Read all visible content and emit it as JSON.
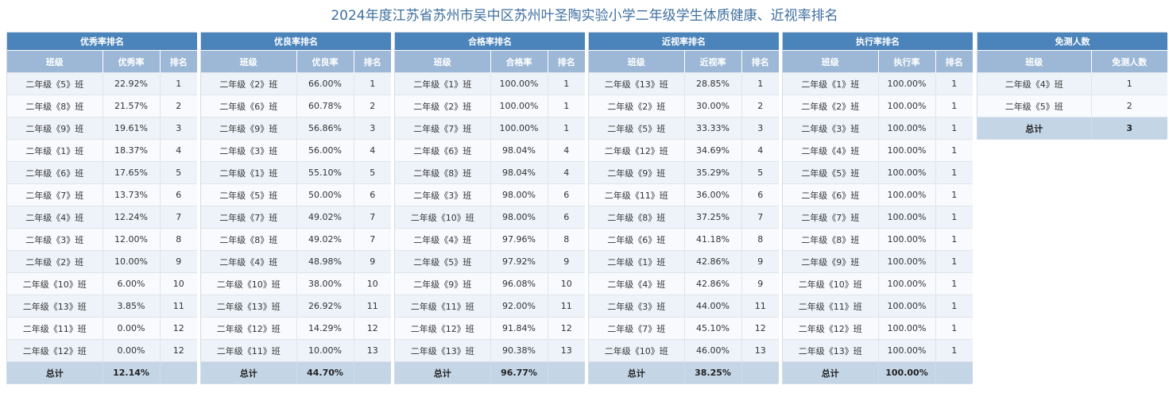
{
  "title": "2024年度江苏省苏州市吴中区苏州叶圣陶实验小学二年级学生体质健康、近视率排名",
  "panels": [
    {
      "caption": "优秀率排名",
      "headers": [
        "班级",
        "优秀率",
        "排名"
      ],
      "rows": [
        [
          "二年级《5》班",
          "22.92%",
          "1"
        ],
        [
          "二年级《8》班",
          "21.57%",
          "2"
        ],
        [
          "二年级《9》班",
          "19.61%",
          "3"
        ],
        [
          "二年级《1》班",
          "18.37%",
          "4"
        ],
        [
          "二年级《6》班",
          "17.65%",
          "5"
        ],
        [
          "二年级《7》班",
          "13.73%",
          "6"
        ],
        [
          "二年级《4》班",
          "12.24%",
          "7"
        ],
        [
          "二年级《3》班",
          "12.00%",
          "8"
        ],
        [
          "二年级《2》班",
          "10.00%",
          "9"
        ],
        [
          "二年级《10》班",
          "6.00%",
          "10"
        ],
        [
          "二年级《13》班",
          "3.85%",
          "11"
        ],
        [
          "二年级《11》班",
          "0.00%",
          "12"
        ],
        [
          "二年级《12》班",
          "0.00%",
          "12"
        ]
      ],
      "total": [
        "总计",
        "12.14%",
        ""
      ]
    },
    {
      "caption": "优良率排名",
      "headers": [
        "班级",
        "优良率",
        "排名"
      ],
      "rows": [
        [
          "二年级《2》班",
          "66.00%",
          "1"
        ],
        [
          "二年级《6》班",
          "60.78%",
          "2"
        ],
        [
          "二年级《9》班",
          "56.86%",
          "3"
        ],
        [
          "二年级《3》班",
          "56.00%",
          "4"
        ],
        [
          "二年级《1》班",
          "55.10%",
          "5"
        ],
        [
          "二年级《5》班",
          "50.00%",
          "6"
        ],
        [
          "二年级《7》班",
          "49.02%",
          "7"
        ],
        [
          "二年级《8》班",
          "49.02%",
          "7"
        ],
        [
          "二年级《4》班",
          "48.98%",
          "9"
        ],
        [
          "二年级《10》班",
          "38.00%",
          "10"
        ],
        [
          "二年级《13》班",
          "26.92%",
          "11"
        ],
        [
          "二年级《12》班",
          "14.29%",
          "12"
        ],
        [
          "二年级《11》班",
          "10.00%",
          "13"
        ]
      ],
      "total": [
        "总计",
        "44.70%",
        ""
      ]
    },
    {
      "caption": "合格率排名",
      "headers": [
        "班级",
        "合格率",
        "排名"
      ],
      "rows": [
        [
          "二年级《1》班",
          "100.00%",
          "1"
        ],
        [
          "二年级《2》班",
          "100.00%",
          "1"
        ],
        [
          "二年级《7》班",
          "100.00%",
          "1"
        ],
        [
          "二年级《6》班",
          "98.04%",
          "4"
        ],
        [
          "二年级《8》班",
          "98.04%",
          "4"
        ],
        [
          "二年级《3》班",
          "98.00%",
          "6"
        ],
        [
          "二年级《10》班",
          "98.00%",
          "6"
        ],
        [
          "二年级《4》班",
          "97.96%",
          "8"
        ],
        [
          "二年级《5》班",
          "97.92%",
          "9"
        ],
        [
          "二年级《9》班",
          "96.08%",
          "10"
        ],
        [
          "二年级《11》班",
          "92.00%",
          "11"
        ],
        [
          "二年级《12》班",
          "91.84%",
          "12"
        ],
        [
          "二年级《13》班",
          "90.38%",
          "13"
        ]
      ],
      "total": [
        "总计",
        "96.77%",
        ""
      ]
    },
    {
      "caption": "近视率排名",
      "headers": [
        "班级",
        "近视率",
        "排名"
      ],
      "rows": [
        [
          "二年级《13》班",
          "28.85%",
          "1"
        ],
        [
          "二年级《2》班",
          "30.00%",
          "2"
        ],
        [
          "二年级《5》班",
          "33.33%",
          "3"
        ],
        [
          "二年级《12》班",
          "34.69%",
          "4"
        ],
        [
          "二年级《9》班",
          "35.29%",
          "5"
        ],
        [
          "二年级《11》班",
          "36.00%",
          "6"
        ],
        [
          "二年级《8》班",
          "37.25%",
          "7"
        ],
        [
          "二年级《6》班",
          "41.18%",
          "8"
        ],
        [
          "二年级《1》班",
          "42.86%",
          "9"
        ],
        [
          "二年级《4》班",
          "42.86%",
          "9"
        ],
        [
          "二年级《3》班",
          "44.00%",
          "11"
        ],
        [
          "二年级《7》班",
          "45.10%",
          "12"
        ],
        [
          "二年级《10》班",
          "46.00%",
          "13"
        ]
      ],
      "total": [
        "总计",
        "38.25%",
        ""
      ]
    },
    {
      "caption": "执行率排名",
      "headers": [
        "班级",
        "执行率",
        "排名"
      ],
      "rows": [
        [
          "二年级《1》班",
          "100.00%",
          "1"
        ],
        [
          "二年级《2》班",
          "100.00%",
          "1"
        ],
        [
          "二年级《3》班",
          "100.00%",
          "1"
        ],
        [
          "二年级《4》班",
          "100.00%",
          "1"
        ],
        [
          "二年级《5》班",
          "100.00%",
          "1"
        ],
        [
          "二年级《6》班",
          "100.00%",
          "1"
        ],
        [
          "二年级《7》班",
          "100.00%",
          "1"
        ],
        [
          "二年级《8》班",
          "100.00%",
          "1"
        ],
        [
          "二年级《9》班",
          "100.00%",
          "1"
        ],
        [
          "二年级《10》班",
          "100.00%",
          "1"
        ],
        [
          "二年级《11》班",
          "100.00%",
          "1"
        ],
        [
          "二年级《12》班",
          "100.00%",
          "1"
        ],
        [
          "二年级《13》班",
          "100.00%",
          "1"
        ]
      ],
      "total": [
        "总计",
        "100.00%",
        ""
      ]
    },
    {
      "caption": "免测人数",
      "headers": [
        "班级",
        "免测人数"
      ],
      "rows": [
        [
          "二年级《4》班",
          "1"
        ],
        [
          "二年级《5》班",
          "2"
        ]
      ],
      "total": [
        "总计",
        "3"
      ]
    }
  ]
}
